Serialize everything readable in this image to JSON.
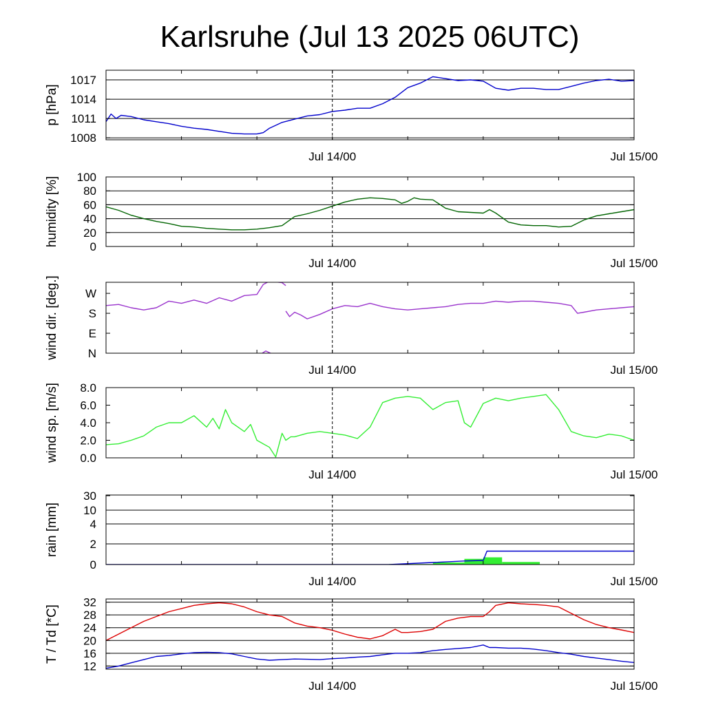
{
  "title": "Karlsruhe (Jul 13 2025 06UTC)",
  "colors": {
    "pressure": "#0000cc",
    "humidity": "#006400",
    "wind_dir": "#9932cc",
    "wind_speed": "#33ee33",
    "rain_total": "#0000cc",
    "rain_bars": "#33ee33",
    "temperature": "#dd0000",
    "dewpoint": "#0000cc"
  },
  "chart_data": [
    {
      "type": "line",
      "ylabel": "p [hPa]",
      "xlabel": "",
      "x_ticks": [
        "Jul 14/00",
        "Jul 15/00"
      ],
      "x_tick_hours": [
        18,
        42
      ],
      "x_range_hours": [
        0,
        42
      ],
      "ylim": [
        1007.7,
        1018.5
      ],
      "y_ticks": [
        1008,
        1011,
        1014,
        1017
      ],
      "y_tick_labels": [
        "1008",
        "1011",
        "1014",
        "1017"
      ],
      "grid": true,
      "series": [
        {
          "color_key": "pressure",
          "x": [
            0,
            0.4,
            0.8,
            1.2,
            2,
            3,
            4,
            5,
            6,
            7,
            8,
            9,
            10,
            11,
            12,
            12.5,
            13,
            14,
            15,
            16,
            17,
            18,
            19,
            20,
            21,
            22,
            23,
            24,
            25,
            26,
            27,
            28,
            29,
            30,
            31,
            32,
            33,
            34,
            35,
            36,
            37,
            38,
            39,
            40,
            41,
            42
          ],
          "y": [
            1010.5,
            1011.7,
            1011.0,
            1011.5,
            1011.3,
            1010.8,
            1010.5,
            1010.2,
            1009.8,
            1009.5,
            1009.3,
            1009.0,
            1008.7,
            1008.6,
            1008.6,
            1008.8,
            1009.5,
            1010.4,
            1010.9,
            1011.4,
            1011.6,
            1012.1,
            1012.3,
            1012.6,
            1012.6,
            1013.3,
            1014.3,
            1015.8,
            1016.5,
            1017.5,
            1017.2,
            1016.9,
            1017.0,
            1016.8,
            1015.7,
            1015.4,
            1015.7,
            1015.7,
            1015.5,
            1015.5,
            1016.0,
            1016.5,
            1016.9,
            1017.1,
            1016.8,
            1016.9
          ]
        }
      ]
    },
    {
      "type": "line",
      "ylabel": "humidity [%]",
      "xlabel": "",
      "x_ticks": [
        "Jul 14/00",
        "Jul 15/00"
      ],
      "x_tick_hours": [
        18,
        42
      ],
      "x_range_hours": [
        0,
        42
      ],
      "ylim": [
        0,
        100
      ],
      "y_ticks": [
        0,
        20,
        40,
        60,
        80,
        100
      ],
      "y_tick_labels": [
        "0",
        "20",
        "40",
        "60",
        "80",
        "100"
      ],
      "grid": true,
      "series": [
        {
          "color_key": "humidity",
          "x": [
            0,
            1,
            2,
            3,
            4,
            5,
            6,
            7,
            8,
            9,
            10,
            11,
            12,
            13,
            14,
            15,
            16,
            17,
            18,
            19,
            20,
            21,
            22,
            23,
            23.5,
            24,
            24.5,
            25,
            26,
            27,
            28,
            29,
            30,
            30.5,
            31,
            32,
            33,
            34,
            35,
            36,
            37,
            38,
            39,
            40,
            41,
            42
          ],
          "y": [
            57,
            52,
            45,
            40,
            36,
            33,
            29,
            28,
            26,
            25,
            24,
            24,
            25,
            27,
            30,
            43,
            47,
            52,
            58,
            64,
            68,
            70,
            69,
            67,
            62,
            65,
            70,
            68,
            67,
            55,
            50,
            49,
            48,
            53,
            48,
            35,
            31,
            30,
            30,
            28,
            29,
            38,
            44,
            47,
            50,
            53
          ]
        }
      ]
    },
    {
      "type": "line",
      "ylabel": "wind dir. [deg.]",
      "xlabel": "",
      "x_ticks": [
        "Jul 14/00",
        "Jul 15/00"
      ],
      "x_tick_hours": [
        18,
        42
      ],
      "x_range_hours": [
        0,
        42
      ],
      "ylim": [
        0,
        320
      ],
      "y_ticks": [
        0,
        90,
        180,
        270
      ],
      "y_tick_labels": [
        "N",
        "E",
        "S",
        "W"
      ],
      "grid": false,
      "series": [
        {
          "color_key": "wind_dir",
          "x": [
            0,
            1,
            2,
            3,
            4,
            5,
            6,
            7,
            8,
            9,
            10,
            11,
            12,
            12.5,
            13,
            14,
            14.3
          ],
          "y": [
            215,
            220,
            205,
            195,
            205,
            235,
            225,
            240,
            225,
            250,
            235,
            260,
            265,
            310,
            325,
            318,
            305
          ]
        },
        {
          "color_key": "wind_dir",
          "x": [
            14.3,
            14.6,
            15,
            15.5,
            16,
            17,
            18,
            19,
            20,
            21,
            22,
            23,
            24,
            25,
            26,
            27,
            28,
            29,
            30,
            31,
            32,
            33,
            34,
            35,
            36,
            37,
            37.5,
            38,
            39,
            40,
            41,
            42
          ],
          "y": [
            190,
            165,
            185,
            172,
            155,
            175,
            200,
            215,
            210,
            225,
            210,
            200,
            195,
            200,
            205,
            210,
            220,
            225,
            225,
            235,
            230,
            235,
            235,
            230,
            225,
            215,
            180,
            185,
            195,
            200,
            205,
            210
          ]
        },
        {
          "color_key": "wind_dir",
          "x": [
            12.3,
            12.7,
            13.2
          ],
          "y": [
            -5,
            10,
            -3
          ]
        }
      ]
    },
    {
      "type": "line",
      "ylabel": "wind sp. [m/s]",
      "xlabel": "",
      "x_ticks": [
        "Jul 14/00",
        "Jul 15/00"
      ],
      "x_tick_hours": [
        18,
        42
      ],
      "x_range_hours": [
        0,
        42
      ],
      "ylim": [
        0,
        8
      ],
      "y_ticks": [
        0,
        2,
        4,
        6,
        8
      ],
      "y_tick_labels": [
        "0.0",
        "2.0",
        "4.0",
        "6.0",
        "8.0"
      ],
      "grid": false,
      "series": [
        {
          "color_key": "wind_speed",
          "x": [
            0,
            1,
            2,
            3,
            4,
            5,
            6,
            7,
            8,
            8.5,
            9,
            9.5,
            10,
            10.5,
            11,
            11.5,
            12,
            13,
            13.5,
            14,
            14.3,
            14.7,
            15,
            16,
            17,
            18,
            19,
            20,
            21,
            22,
            23,
            24,
            25,
            26,
            27,
            28,
            28.5,
            29,
            30,
            31,
            32,
            33,
            34,
            35,
            36,
            37,
            38,
            39,
            40,
            41,
            42
          ],
          "y": [
            1.5,
            1.6,
            2.0,
            2.5,
            3.5,
            4.0,
            4.0,
            4.8,
            3.5,
            4.5,
            3.3,
            5.5,
            4.0,
            3.5,
            3.0,
            3.8,
            2.0,
            1.2,
            0.1,
            2.8,
            2.0,
            2.4,
            2.4,
            2.8,
            3.0,
            2.8,
            2.6,
            2.2,
            3.5,
            6.3,
            6.8,
            7.0,
            6.8,
            5.5,
            6.3,
            6.5,
            4.0,
            3.5,
            6.2,
            6.8,
            6.5,
            6.8,
            7.0,
            7.2,
            5.5,
            3.0,
            2.5,
            2.3,
            2.7,
            2.5,
            2.0
          ]
        }
      ]
    },
    {
      "type": "bar",
      "ylabel": "rain [mm]",
      "xlabel": "",
      "x_ticks": [
        "Jul 14/00",
        "Jul 15/00"
      ],
      "x_tick_hours": [
        18,
        42
      ],
      "x_range_hours": [
        0,
        42
      ],
      "ylim": [
        0,
        30
      ],
      "y_ticks": [
        0,
        2,
        4,
        10,
        30
      ],
      "y_tick_labels": [
        "0",
        "2",
        "4",
        "10",
        "30"
      ],
      "grid": true,
      "bars": {
        "color_key": "rain_bars",
        "x_start": [
          22.5,
          26,
          28.5,
          30,
          31.5
        ],
        "x_end": [
          26,
          28.5,
          30,
          31.5,
          34.5
        ],
        "values": [
          0.05,
          0.2,
          0.55,
          0.7,
          0.25
        ]
      },
      "series": [
        {
          "color_key": "rain_total",
          "x": [
            0,
            22.5,
            26,
            28.5,
            30,
            30.3,
            42
          ],
          "y": [
            0,
            0,
            0.2,
            0.35,
            0.4,
            1.3,
            1.3
          ]
        }
      ]
    },
    {
      "type": "line",
      "ylabel": "T / Td [*C]",
      "xlabel": "",
      "x_ticks": [
        "Jul 14/00",
        "Jul 15/00"
      ],
      "x_tick_hours": [
        18,
        42
      ],
      "x_range_hours": [
        0,
        42
      ],
      "ylim": [
        11,
        33
      ],
      "y_ticks": [
        12,
        16,
        20,
        24,
        28,
        32
      ],
      "y_tick_labels": [
        "12",
        "16",
        "20",
        "24",
        "28",
        "32"
      ],
      "grid": true,
      "series": [
        {
          "name": "T",
          "color_key": "temperature",
          "x": [
            0,
            1,
            2,
            3,
            4,
            5,
            6,
            7,
            8,
            9,
            10,
            11,
            12,
            13,
            14,
            15,
            16,
            17,
            18,
            19,
            20,
            21,
            22,
            23,
            23.5,
            24,
            25,
            26,
            27,
            28,
            29,
            30,
            30.5,
            31,
            32,
            33,
            34,
            35,
            36,
            37,
            38,
            39,
            40,
            41,
            42
          ],
          "y": [
            20,
            22,
            24,
            26,
            27.5,
            29,
            30,
            31,
            31.5,
            31.8,
            31.5,
            30.5,
            29,
            28,
            27.5,
            25.5,
            24.5,
            24,
            23.2,
            22,
            21,
            20.5,
            21.5,
            23.5,
            22.5,
            22.5,
            22.8,
            23.5,
            26,
            27,
            27.5,
            27.5,
            29,
            31,
            31.8,
            31.5,
            31.3,
            31,
            30.5,
            28.5,
            26.5,
            25,
            24,
            23.3,
            22.5
          ]
        },
        {
          "name": "Td",
          "color_key": "dewpoint",
          "x": [
            0,
            1,
            2,
            3,
            4,
            5,
            6,
            7,
            8,
            9,
            10,
            11,
            12,
            13,
            14,
            15,
            16,
            17,
            18,
            19,
            20,
            21,
            22,
            23,
            24,
            25,
            26,
            27,
            28,
            29,
            30,
            30.5,
            31,
            32,
            33,
            34,
            35,
            36,
            37,
            38,
            39,
            40,
            41,
            42
          ],
          "y": [
            11.3,
            12,
            13,
            14,
            15,
            15.3,
            15.8,
            16.2,
            16.3,
            16.2,
            15.8,
            15,
            14.2,
            13.8,
            14,
            14.2,
            14.1,
            14,
            14.3,
            14.5,
            14.8,
            15,
            15.5,
            16,
            16,
            16.2,
            16.8,
            17.2,
            17.5,
            17.8,
            18.6,
            17.8,
            17.8,
            17.6,
            17.6,
            17.3,
            16.8,
            16.2,
            15.7,
            15,
            14.5,
            14,
            13.5,
            13.1
          ]
        }
      ]
    }
  ]
}
